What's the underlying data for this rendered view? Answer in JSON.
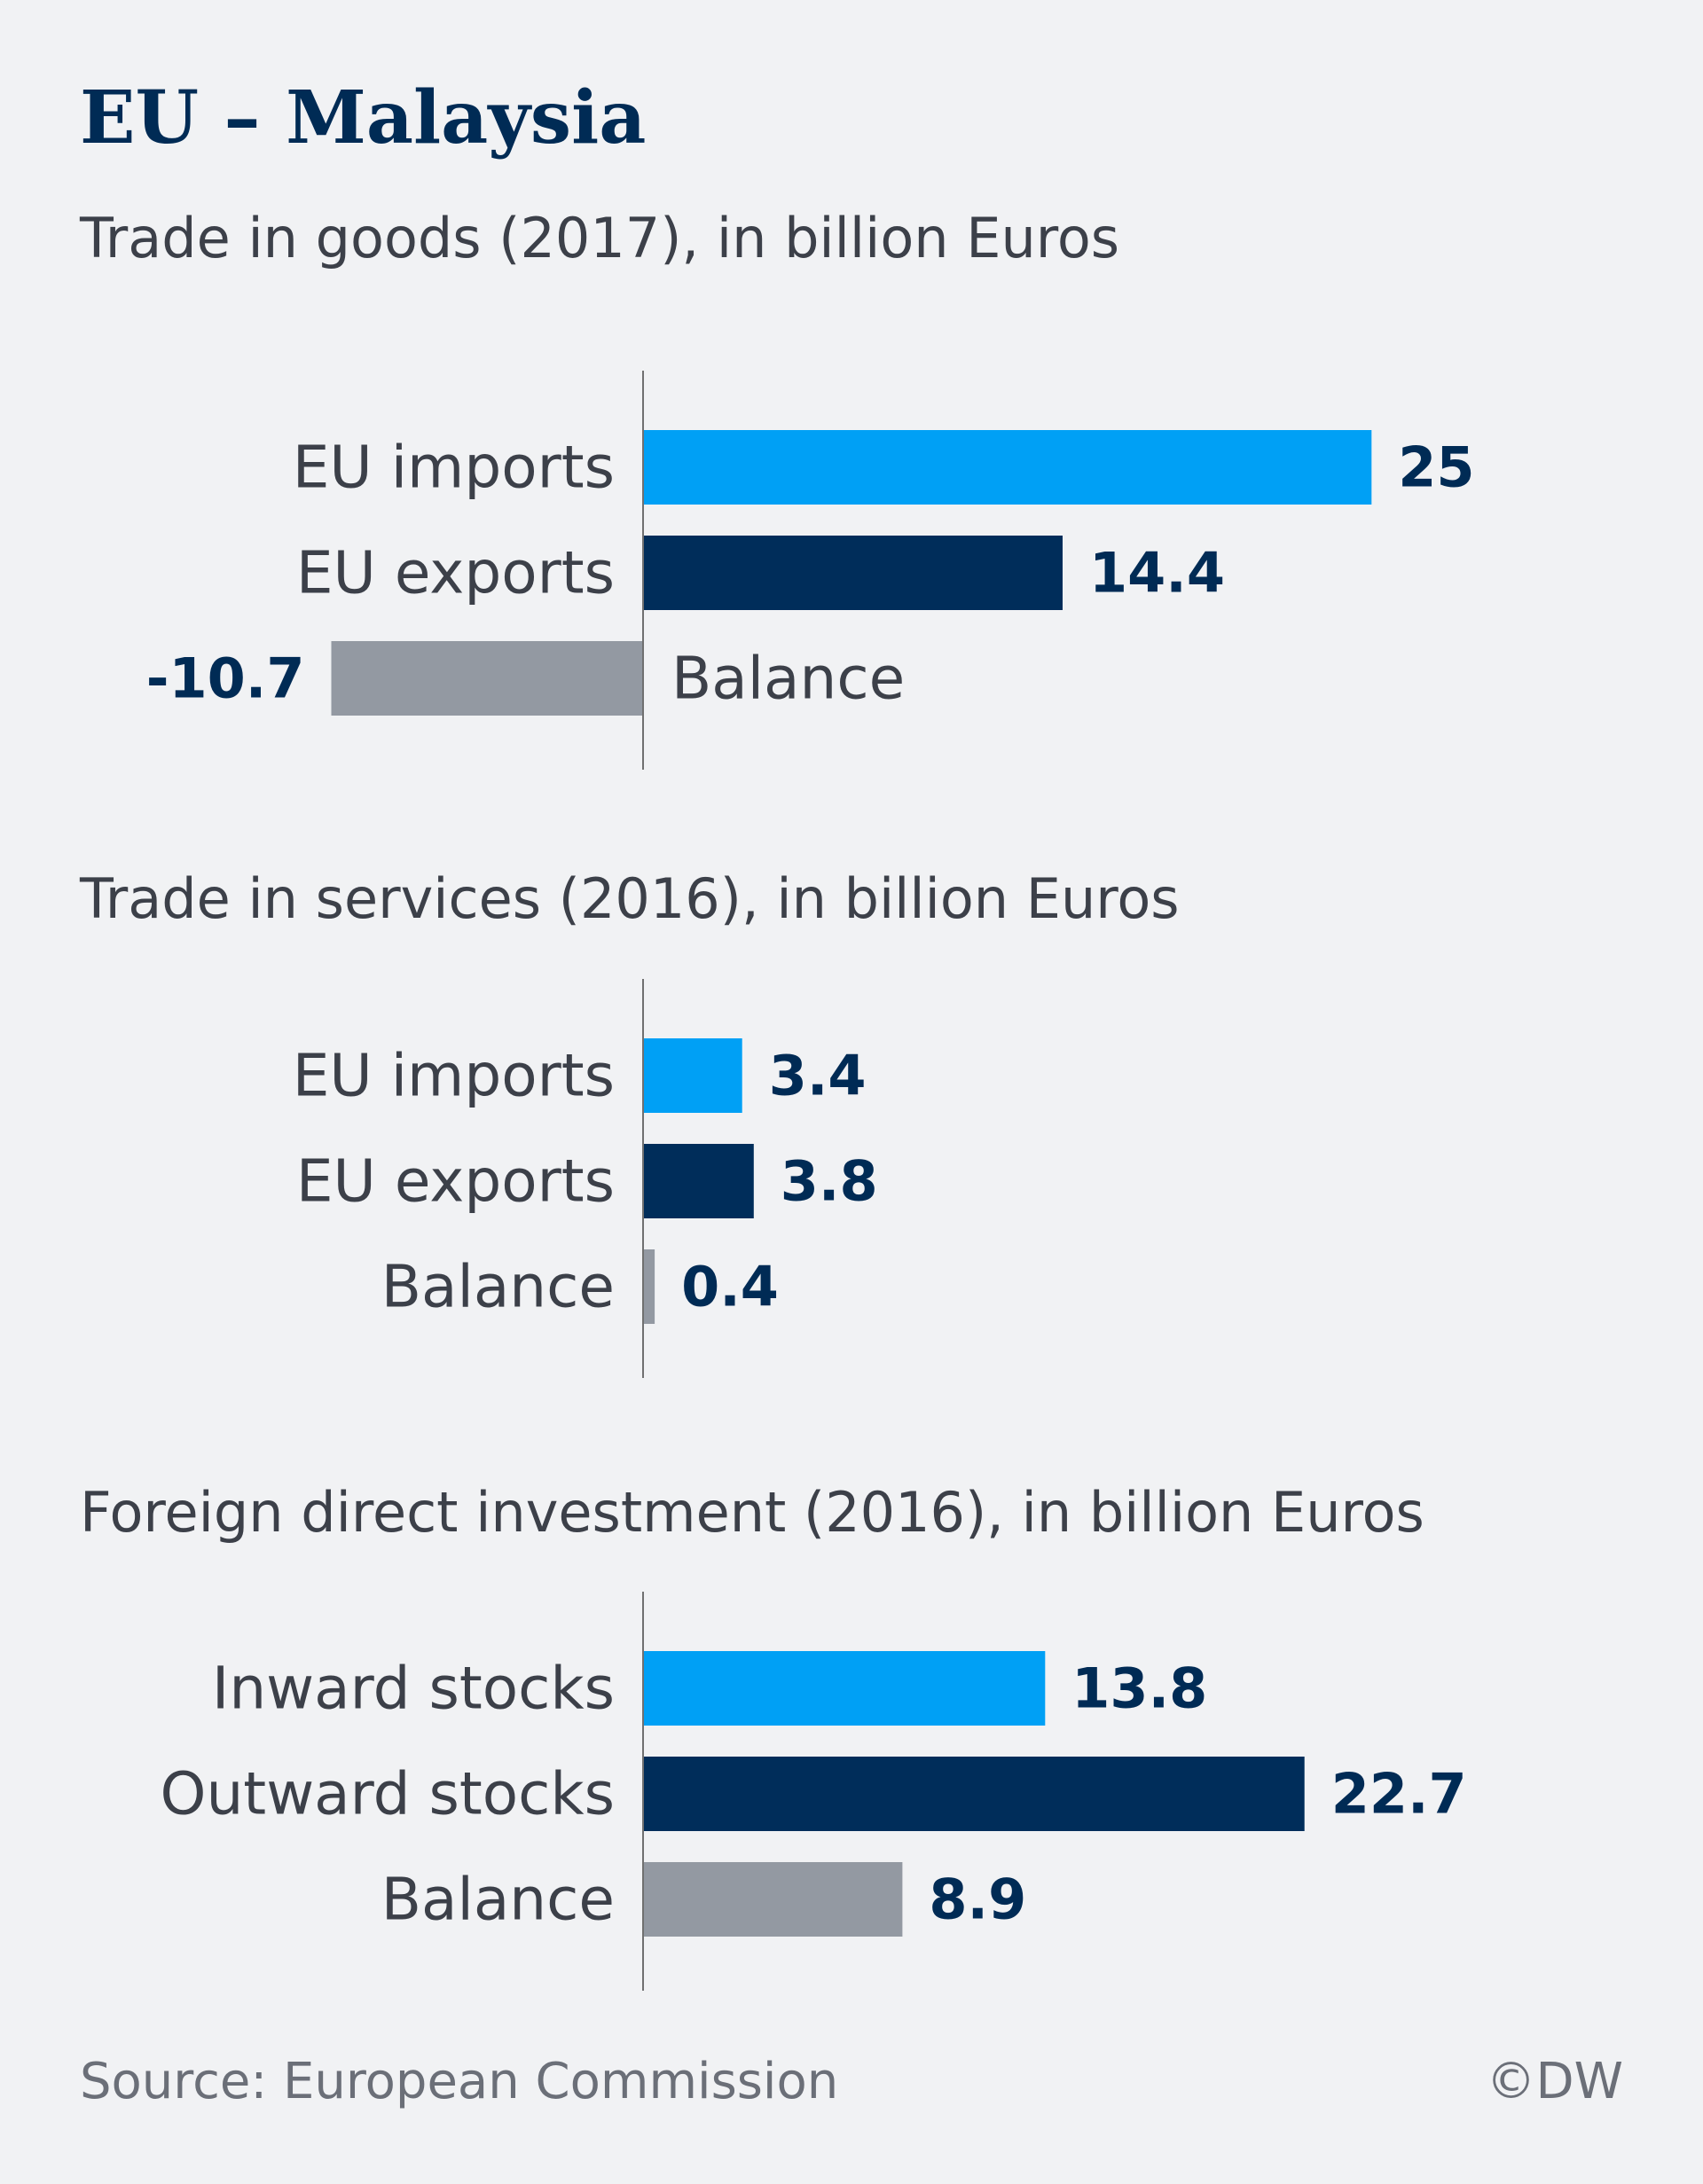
{
  "title": "EU – Malaysia",
  "footer": {
    "source": "Source: European Commission",
    "credit": "©DW"
  },
  "colors": {
    "imports": "#00a0f5",
    "exports": "#002d5a",
    "balance": "#9399a2",
    "value_text": "#002b55",
    "label_text": "#3c4049",
    "axis": "#707070"
  },
  "chart_data": [
    {
      "type": "bar",
      "orientation": "horizontal",
      "title": "Trade in goods (2017), in billion Euros",
      "categories": [
        "EU imports",
        "EU exports",
        "Balance"
      ],
      "values": [
        25,
        14.4,
        -10.7
      ],
      "value_labels": [
        "25",
        "14.4",
        "-10.7"
      ],
      "series_colors": [
        "imports",
        "exports",
        "balance"
      ]
    },
    {
      "type": "bar",
      "orientation": "horizontal",
      "title": "Trade in services (2016),  in billion Euros",
      "categories": [
        "EU imports",
        "EU exports",
        "Balance"
      ],
      "values": [
        3.4,
        3.8,
        0.4
      ],
      "value_labels": [
        "3.4",
        "3.8",
        "0.4"
      ],
      "series_colors": [
        "imports",
        "exports",
        "balance"
      ]
    },
    {
      "type": "bar",
      "orientation": "horizontal",
      "title": "Foreign direct investment (2016),  in billion Euros",
      "categories": [
        "Inward stocks",
        "Outward stocks",
        "Balance"
      ],
      "values": [
        13.8,
        22.7,
        8.9
      ],
      "value_labels": [
        "13.8",
        "22.7",
        "8.9"
      ],
      "series_colors": [
        "imports",
        "exports",
        "balance"
      ]
    }
  ]
}
